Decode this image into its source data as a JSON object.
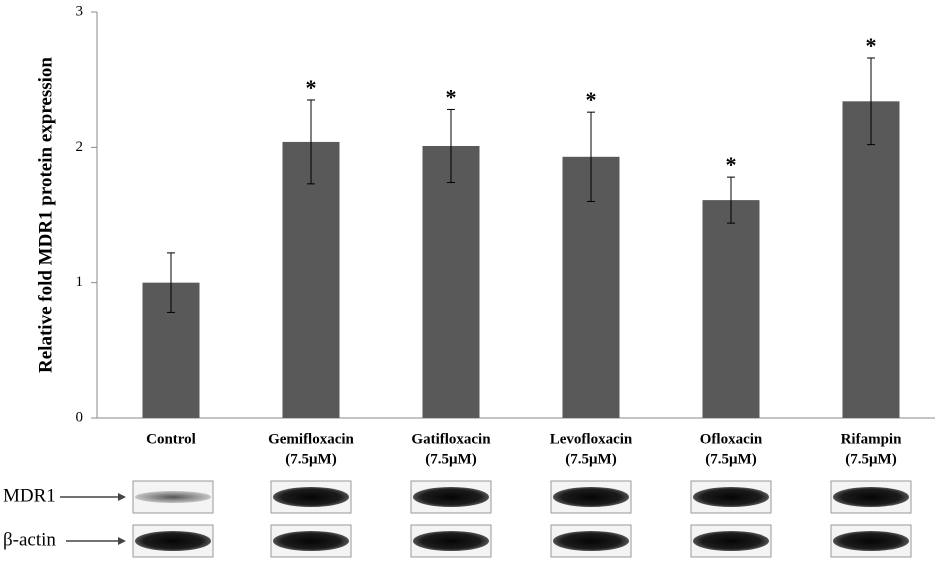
{
  "chart_data": {
    "type": "bar",
    "y_label": "Relative fold MDR1 protein expression",
    "categories": [
      "Control",
      "Gemifloxacin",
      "Gatifloxacin",
      "Levofloxacin",
      "Ofloxacin",
      "Rifampin"
    ],
    "category_sublabels": [
      null,
      "(7.5μM)",
      "(7.5μM)",
      "(7.5μM)",
      "(7.5μM)",
      "(7.5μM)"
    ],
    "values": [
      1.0,
      2.04,
      2.01,
      1.93,
      1.61,
      2.34
    ],
    "errors": [
      0.22,
      0.31,
      0.27,
      0.33,
      0.17,
      0.32
    ],
    "significance": [
      null,
      "*",
      "*",
      "*",
      "*",
      "*"
    ],
    "color": "#595959",
    "ylim": [
      0,
      3
    ],
    "yticks": [
      0,
      1,
      2,
      3
    ],
    "grid": false
  },
  "blots": {
    "rows": [
      {
        "label": "MDR1"
      },
      {
        "label": "β-actin"
      }
    ]
  }
}
